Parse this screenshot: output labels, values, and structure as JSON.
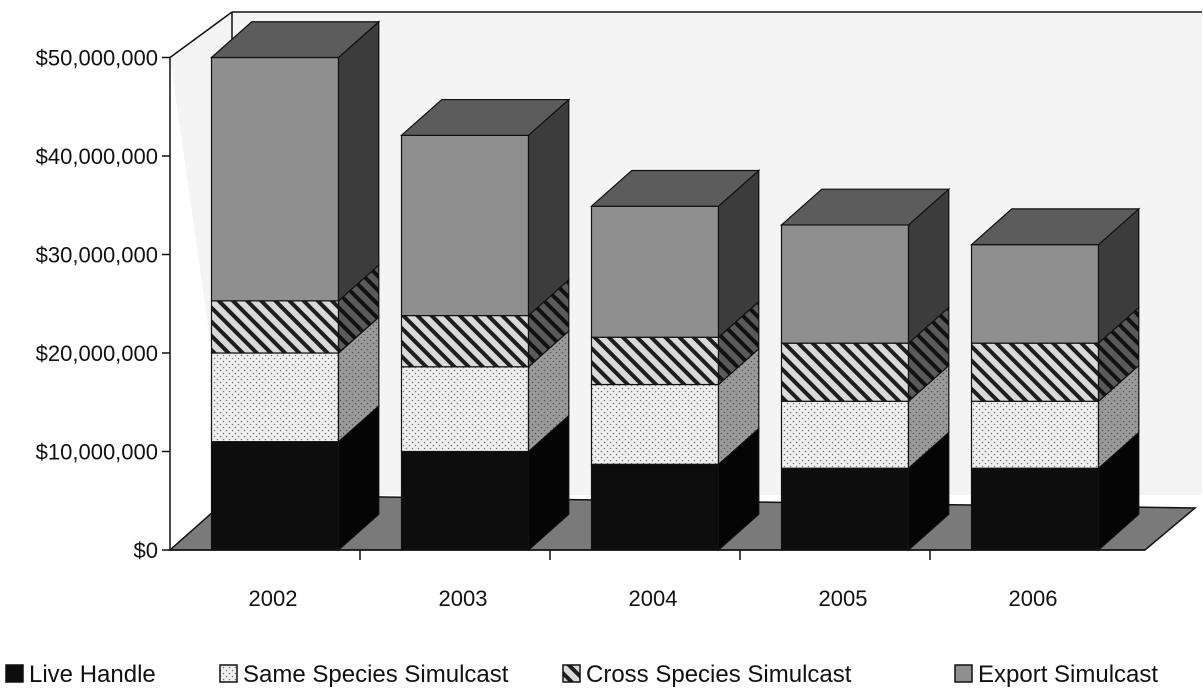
{
  "chart_data": {
    "type": "bar",
    "stacked": true,
    "three_d": true,
    "title": "",
    "xlabel": "",
    "ylabel": "",
    "categories": [
      "2002",
      "2003",
      "2004",
      "2005",
      "2006"
    ],
    "ylim": [
      0,
      50000000
    ],
    "y_ticks": [
      "$0",
      "$10,000,000",
      "$20,000,000",
      "$30,000,000",
      "$40,000,000",
      "$50,000,000"
    ],
    "series": [
      {
        "name": "Live Handle",
        "values": [
          11000000,
          10000000,
          8700000,
          8300000,
          8300000
        ],
        "color": "#0d0d0d",
        "pattern": "solid"
      },
      {
        "name": "Same Species Simulcast",
        "values": [
          9000000,
          8600000,
          8100000,
          6800000,
          6800000
        ],
        "color": "#ededed",
        "pattern": "dots"
      },
      {
        "name": "Cross Species Simulcast",
        "values": [
          5300000,
          5200000,
          4800000,
          5900000,
          5900000
        ],
        "color": "#d6d6d6",
        "pattern": "hatch"
      },
      {
        "name": "Export Simulcast",
        "values": [
          24700000,
          18300000,
          13300000,
          12000000,
          10000000
        ],
        "color": "#8a8a8a",
        "pattern": "solid"
      }
    ],
    "grid": false,
    "legend_position": "bottom"
  }
}
